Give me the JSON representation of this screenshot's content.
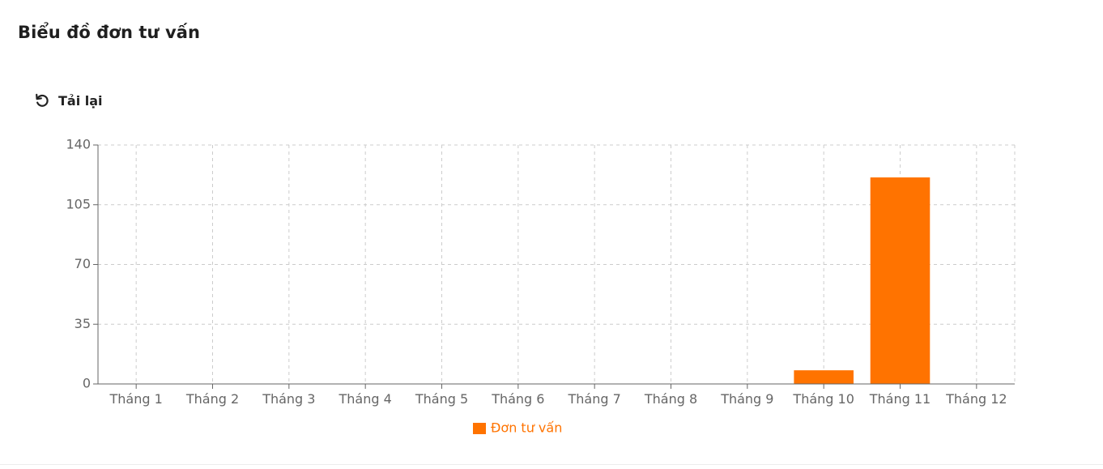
{
  "page": {
    "title": "Biểu đồ đơn tư vấn"
  },
  "toolbar": {
    "reload_label": "Tải lại",
    "reload_icon": "reload-icon"
  },
  "chart_data": {
    "type": "bar",
    "title": "",
    "xlabel": "",
    "ylabel": "",
    "categories": [
      "Tháng 1",
      "Tháng 2",
      "Tháng 3",
      "Tháng 4",
      "Tháng 5",
      "Tháng 6",
      "Tháng 7",
      "Tháng 8",
      "Tháng 9",
      "Tháng 10",
      "Tháng 11",
      "Tháng 12"
    ],
    "series": [
      {
        "name": "Đơn tư vấn",
        "color": "#ff7300",
        "values": [
          0,
          0,
          0,
          0,
          0,
          0,
          0,
          0,
          0,
          8,
          121,
          0
        ]
      }
    ],
    "ylim": [
      0,
      140
    ],
    "yticks": [
      0,
      35,
      70,
      105,
      140
    ],
    "grid": true,
    "legend": "bottom-center"
  }
}
